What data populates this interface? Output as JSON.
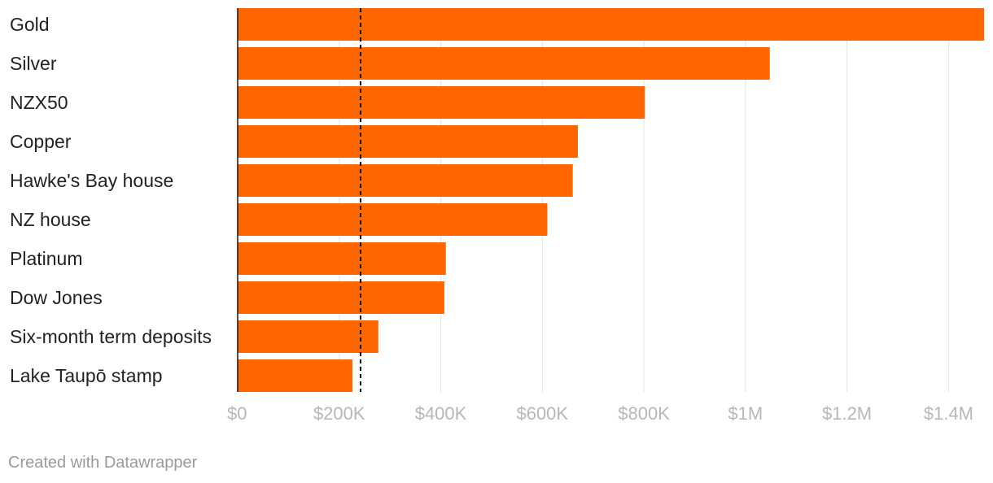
{
  "chart_data": {
    "type": "bar",
    "orientation": "horizontal",
    "categories": [
      "Gold",
      "Silver",
      "NZX50",
      "Copper",
      "Hawke's Bay house",
      "NZ house",
      "Platinum",
      "Dow Jones",
      "Six-month term deposits",
      "Lake Taupō stamp"
    ],
    "values": [
      1470000,
      1048000,
      802000,
      670000,
      660000,
      610000,
      410000,
      407000,
      277000,
      226000
    ],
    "xlim": [
      0,
      1470000
    ],
    "xticks": [
      0,
      200000,
      400000,
      600000,
      800000,
      1000000,
      1200000,
      1400000
    ],
    "xtick_labels": [
      "$0",
      "$200K",
      "$400K",
      "$600K",
      "$800K",
      "$1M",
      "$1.2M",
      "$1.4M"
    ],
    "reference_line": {
      "value": 242000,
      "style": "dashed"
    },
    "grid": true,
    "bar_color": "#ff6600"
  },
  "footer": {
    "credit": "Created with Datawrapper"
  }
}
